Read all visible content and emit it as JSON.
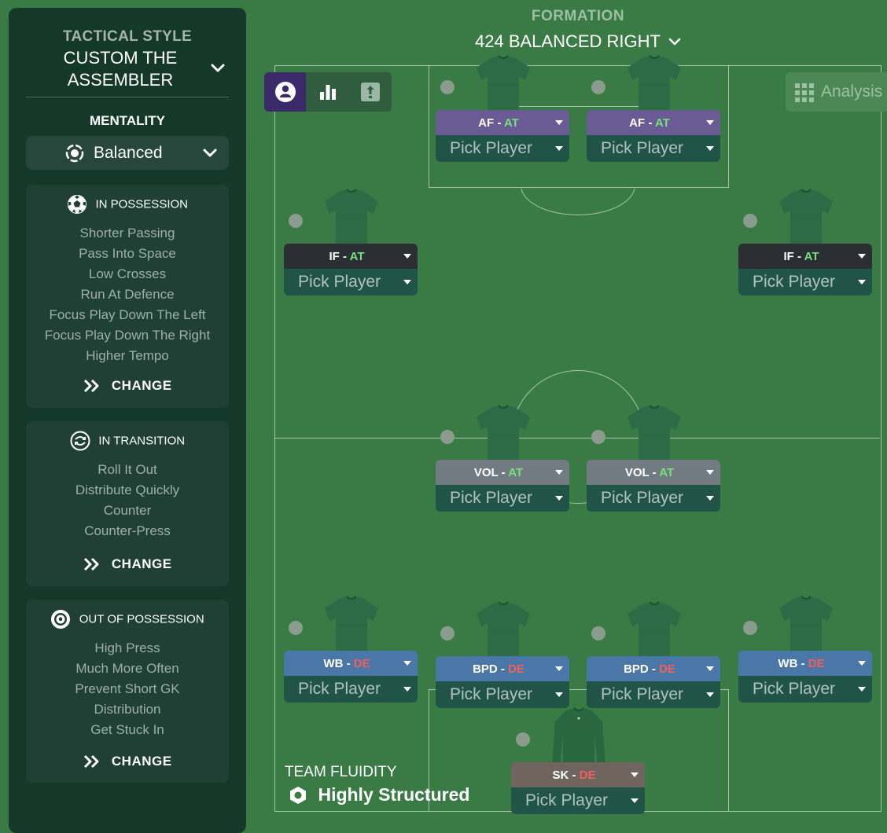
{
  "sidebar": {
    "tactical_style_label": "TACTICAL STYLE",
    "tactical_style_name": "CUSTOM THE ASSEMBLER",
    "mentality_label": "MENTALITY",
    "mentality_value": "Balanced",
    "in_possession": {
      "title": "IN POSSESSION",
      "items": [
        "Shorter Passing",
        "Pass Into Space",
        "Low Crosses",
        "Run At Defence",
        "Focus Play Down The Left",
        "Focus Play Down The Right",
        "Higher Tempo"
      ],
      "change_label": "CHANGE"
    },
    "in_transition": {
      "title": "IN TRANSITION",
      "items": [
        "Roll It Out",
        "Distribute Quickly",
        "Counter",
        "Counter-Press"
      ],
      "change_label": "CHANGE"
    },
    "out_of_possession": {
      "title": "OUT OF POSSESSION",
      "items": [
        "High Press",
        "Much More Often",
        "Prevent Short GK",
        "Distribution",
        "Get Stuck In"
      ],
      "change_label": "CHANGE"
    }
  },
  "header": {
    "formation_label": "FORMATION",
    "formation_name": "424 BALANCED RIGHT"
  },
  "toolbar": {
    "analysis_label": "Analysis"
  },
  "players": [
    {
      "role": "AF",
      "duty": "AT",
      "pick": "Pick Player",
      "color": "#6b5b95"
    },
    {
      "role": "AF",
      "duty": "AT",
      "pick": "Pick Player",
      "color": "#6b5b95"
    },
    {
      "role": "IF",
      "duty": "AT",
      "pick": "Pick Player",
      "color": "#2b2f33"
    },
    {
      "role": "IF",
      "duty": "AT",
      "pick": "Pick Player",
      "color": "#2b2f33"
    },
    {
      "role": "VOL",
      "duty": "AT",
      "pick": "Pick Player",
      "color": "#727b82"
    },
    {
      "role": "VOL",
      "duty": "AT",
      "pick": "Pick Player",
      "color": "#727b82"
    },
    {
      "role": "WB",
      "duty": "DE",
      "pick": "Pick Player",
      "color": "#4b76a8"
    },
    {
      "role": "BPD",
      "duty": "DE",
      "pick": "Pick Player",
      "color": "#4b76a8"
    },
    {
      "role": "BPD",
      "duty": "DE",
      "pick": "Pick Player",
      "color": "#4b76a8"
    },
    {
      "role": "WB",
      "duty": "DE",
      "pick": "Pick Player",
      "color": "#4b76a8"
    },
    {
      "role": "SK",
      "duty": "DE",
      "pick": "Pick Player",
      "color": "#6f655e"
    }
  ],
  "colors": {
    "attack_duty": "#74e07e",
    "defend_duty": "#f0605a"
  },
  "team_fluidity": {
    "label": "TEAM FLUIDITY",
    "value": "Highly Structured"
  }
}
